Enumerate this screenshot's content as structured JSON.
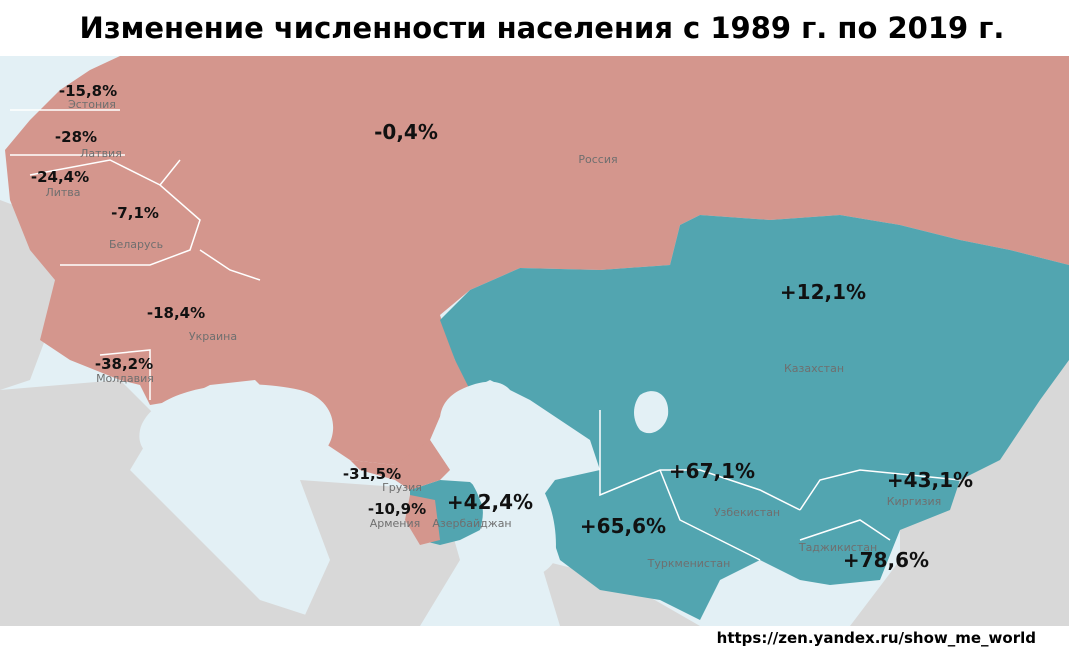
{
  "title": "Изменение численности населения с 1989 г. по 2019 г.",
  "regions": [
    {
      "name": "Эстония",
      "change": "-15,8%"
    },
    {
      "name": "Латвия",
      "change": "-28%"
    },
    {
      "name": "Литва",
      "change": "-24,4%"
    },
    {
      "name": "Беларусь",
      "change": "-7,1%"
    },
    {
      "name": "Украина",
      "change": "-18,4%"
    },
    {
      "name": "Молдавия",
      "change": "-38,2%"
    },
    {
      "name": "Россия",
      "change": "-0,4%"
    },
    {
      "name": "Грузия",
      "change": "-31,5%"
    },
    {
      "name": "Армения",
      "change": "-10,9%"
    },
    {
      "name": "Азербайджан",
      "change": "+42,4%"
    },
    {
      "name": "Казахстан",
      "change": "+12,1%"
    },
    {
      "name": "Узбекистан",
      "change": "+67,1%"
    },
    {
      "name": "Туркменистан",
      "change": "+65,6%"
    },
    {
      "name": "Киргизия",
      "change": "+43,1%"
    },
    {
      "name": "Таджикистан",
      "change": "+78,6%"
    }
  ],
  "source": "https://zen.yandex.ru/show_me_world"
}
